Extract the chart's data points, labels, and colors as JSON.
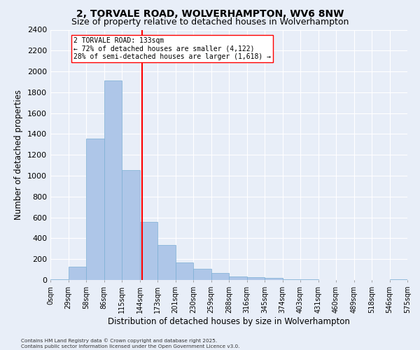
{
  "title_line1": "2, TORVALE ROAD, WOLVERHAMPTON, WV6 8NW",
  "title_line2": "Size of property relative to detached houses in Wolverhampton",
  "xlabel": "Distribution of detached houses by size in Wolverhampton",
  "ylabel": "Number of detached properties",
  "footer_line1": "Contains HM Land Registry data © Crown copyright and database right 2025.",
  "footer_line2": "Contains public sector information licensed under the Open Government Licence v3.0.",
  "annotation_line1": "2 TORVALE ROAD: 133sqm",
  "annotation_line2": "← 72% of detached houses are smaller (4,122)",
  "annotation_line3": "28% of semi-detached houses are larger (1,618) →",
  "bar_values": [
    10,
    125,
    1355,
    1910,
    1055,
    560,
    335,
    170,
    110,
    65,
    35,
    30,
    20,
    10,
    5,
    3,
    2,
    1,
    1,
    8
  ],
  "bin_labels": [
    "0sqm",
    "29sqm",
    "58sqm",
    "86sqm",
    "115sqm",
    "144sqm",
    "173sqm",
    "201sqm",
    "230sqm",
    "259sqm",
    "288sqm",
    "316sqm",
    "345sqm",
    "374sqm",
    "403sqm",
    "431sqm",
    "460sqm",
    "489sqm",
    "518sqm",
    "546sqm",
    "575sqm"
  ],
  "bar_color": "#aec6e8",
  "bar_edge_color": "#7bafd4",
  "vline_color": "red",
  "annotation_box_fill": "white",
  "ylim": [
    0,
    2400
  ],
  "yticks": [
    0,
    200,
    400,
    600,
    800,
    1000,
    1200,
    1400,
    1600,
    1800,
    2000,
    2200,
    2400
  ],
  "bg_color": "#e8eef8",
  "plot_bg_color": "#e8eef8",
  "grid_color": "white",
  "title_fontsize": 10,
  "subtitle_fontsize": 9
}
